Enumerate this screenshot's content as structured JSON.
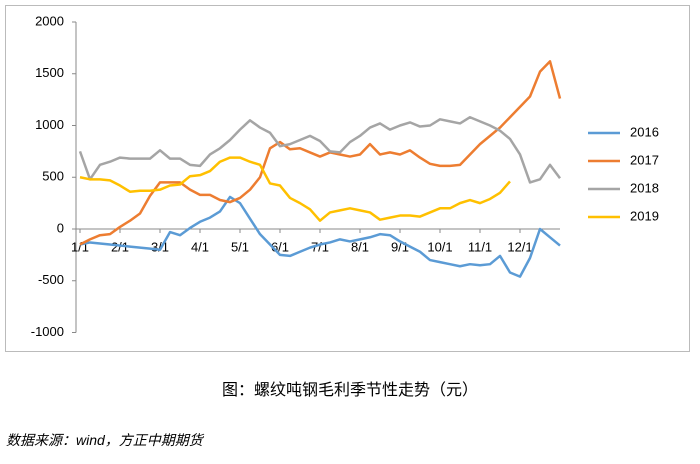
{
  "chart_data": {
    "type": "line",
    "caption": "图：螺纹吨钢毛利季节性走势（元）",
    "source": "数据来源：wind，方正中期期货",
    "categories": [
      "1/1",
      null,
      null,
      null,
      "2/1",
      null,
      null,
      null,
      "3/1",
      null,
      null,
      null,
      "4/1",
      null,
      null,
      null,
      "5/1",
      null,
      null,
      null,
      "6/1",
      null,
      null,
      null,
      "7/1",
      null,
      null,
      null,
      "8/1",
      null,
      null,
      null,
      "9/1",
      null,
      null,
      null,
      "10/1",
      null,
      null,
      null,
      "11/1",
      null,
      null,
      null,
      "12/1",
      null,
      null,
      null,
      null
    ],
    "series": [
      {
        "name": "2016",
        "color": "#5b9bd5",
        "values": [
          -150,
          -130,
          -140,
          -150,
          -160,
          -170,
          -180,
          -190,
          -200,
          -30,
          -60,
          10,
          70,
          110,
          170,
          310,
          250,
          100,
          -50,
          -150,
          -250,
          -260,
          -220,
          -180,
          -150,
          -130,
          -100,
          -120,
          -100,
          -80,
          -50,
          -60,
          -120,
          -170,
          -220,
          -300,
          -320,
          -340,
          -360,
          -340,
          -350,
          -340,
          -260,
          -420,
          -460,
          -280,
          0,
          -80,
          -160
        ]
      },
      {
        "name": "2017",
        "color": "#ed7d31",
        "values": [
          -150,
          -100,
          -60,
          -50,
          20,
          80,
          150,
          320,
          450,
          450,
          450,
          380,
          330,
          330,
          280,
          260,
          300,
          380,
          500,
          780,
          840,
          770,
          780,
          740,
          700,
          740,
          720,
          700,
          720,
          820,
          720,
          740,
          720,
          760,
          690,
          630,
          610,
          610,
          620,
          720,
          820,
          900,
          980,
          1080,
          1180,
          1280,
          1520,
          1620,
          1260
        ]
      },
      {
        "name": "2018",
        "color": "#a5a5a5",
        "values": [
          750,
          480,
          620,
          650,
          690,
          680,
          680,
          680,
          760,
          680,
          680,
          620,
          610,
          720,
          780,
          860,
          960,
          1050,
          980,
          930,
          800,
          820,
          860,
          900,
          850,
          750,
          740,
          840,
          900,
          980,
          1020,
          960,
          1000,
          1030,
          990,
          1000,
          1060,
          1040,
          1020,
          1080,
          1040,
          1000,
          950,
          870,
          720,
          450,
          480,
          620,
          490
        ]
      },
      {
        "name": "2019",
        "color": "#ffc000",
        "values": [
          500,
          480,
          480,
          470,
          420,
          360,
          370,
          370,
          380,
          420,
          430,
          510,
          520,
          560,
          650,
          690,
          690,
          650,
          620,
          440,
          420,
          300,
          250,
          190,
          80,
          160,
          180,
          200,
          180,
          160,
          90,
          110,
          130,
          130,
          120,
          160,
          200,
          200,
          250,
          280,
          250,
          290,
          350,
          460,
          null,
          null,
          null,
          null,
          null
        ]
      }
    ],
    "ylim": [
      -1000,
      2000
    ],
    "yticks": [
      -1000,
      -500,
      0,
      500,
      1000,
      1500,
      2000
    ],
    "grid": false,
    "legend": "right"
  }
}
